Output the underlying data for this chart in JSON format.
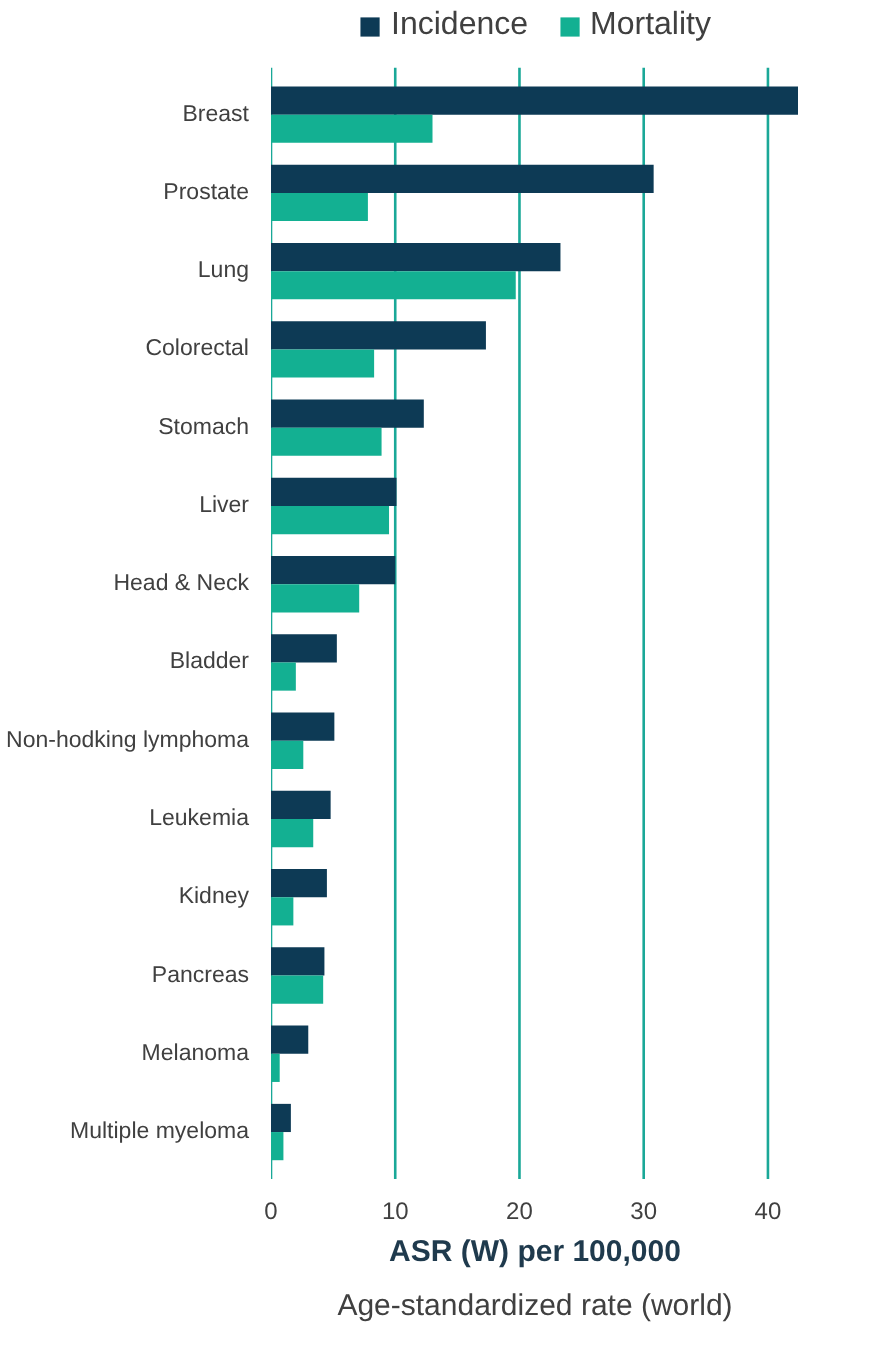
{
  "chart_data": {
    "type": "bar",
    "orientation": "horizontal",
    "categories": [
      "Breast",
      "Prostate",
      "Lung",
      "Colorectal",
      "Stomach",
      "Liver",
      "Head & Neck",
      "Bladder",
      "Non-hodking lymphoma",
      "Leukemia",
      "Kidney",
      "Pancreas",
      "Melanoma",
      "Multiple myeloma"
    ],
    "series": [
      {
        "name": "Incidence",
        "color": "#0d3a55",
        "values": [
          42.5,
          30.8,
          23.3,
          17.3,
          12.3,
          10.1,
          10.0,
          5.3,
          5.1,
          4.8,
          4.5,
          4.3,
          3.0,
          1.6
        ]
      },
      {
        "name": "Mortality",
        "color": "#13b092",
        "values": [
          13.0,
          7.8,
          19.7,
          8.3,
          8.9,
          9.5,
          7.1,
          2.0,
          2.6,
          3.4,
          1.8,
          4.2,
          0.7,
          1.0
        ]
      }
    ],
    "xlim": [
      0,
      42.5
    ],
    "xticks": [
      0,
      10,
      20,
      30,
      40
    ],
    "grid": "x",
    "legend": "top",
    "xlabel": "ASR (W) per 100,000",
    "annotations": [
      "Age-standardized rate (world)"
    ]
  }
}
